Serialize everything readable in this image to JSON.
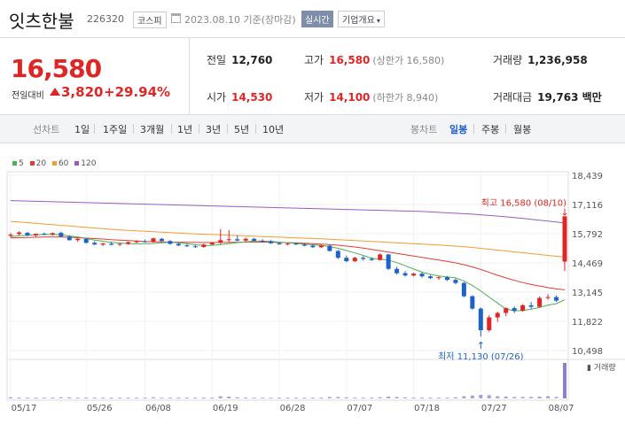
{
  "header": {
    "name": "잇츠한불",
    "code": "226320",
    "market": "코스피",
    "date": "2023.08.10 기준(장마감)",
    "realtime": "실시간",
    "company_info": "기업개요"
  },
  "summary": {
    "price": "16,580",
    "prev_label": "전일대비",
    "change": "3,820",
    "change_pct": "+29.94%",
    "prev_close_label": "전일",
    "prev_close": "12,760",
    "high_label": "고가",
    "high": "16,580",
    "upper_limit": "(상한가 16,580)",
    "volume_label": "거래량",
    "volume": "1,236,958",
    "open_label": "시가",
    "open": "14,530",
    "low_label": "저가",
    "low": "14,100",
    "lower_limit": "(하한가 8,940)",
    "amount_label": "거래대금",
    "amount": "19,763 백만"
  },
  "toolbar": {
    "line_chart_label": "선차트",
    "periods": [
      "1일",
      "1주일",
      "3개월",
      "1년",
      "3년",
      "5년",
      "10년"
    ],
    "candle_label": "봉차트",
    "candle_options": [
      "일봉",
      "주봉",
      "월봉"
    ],
    "active_candle": "일봉"
  },
  "legend": [
    {
      "label": "5",
      "color": "#4caf50"
    },
    {
      "label": "20",
      "color": "#e53935"
    },
    {
      "label": "60",
      "color": "#f39c34"
    },
    {
      "label": "120",
      "color": "#9b59c6"
    }
  ],
  "chart_data": {
    "type": "candlestick",
    "y_ticks": [
      "18,439",
      "17,116",
      "15,792",
      "14,469",
      "13,145",
      "11,822",
      "10,498"
    ],
    "y_range": [
      10498,
      18439
    ],
    "x_ticks": [
      "05/17",
      "05/26",
      "06/08",
      "06/19",
      "06/28",
      "07/07",
      "07/18",
      "07/27",
      "08/07"
    ],
    "high_annotation": "최고 16,580 (08/10)",
    "low_annotation": "최저 11,130 (07/26)",
    "volume_label": "거래량",
    "candles": [
      [
        15700,
        15820,
        15620,
        15750
      ],
      [
        15780,
        15900,
        15700,
        15850
      ],
      [
        15830,
        15880,
        15680,
        15720
      ],
      [
        15720,
        15800,
        15650,
        15790
      ],
      [
        15790,
        15850,
        15720,
        15760
      ],
      [
        15760,
        15840,
        15700,
        15820
      ],
      [
        15830,
        15880,
        15640,
        15660
      ],
      [
        15660,
        15720,
        15480,
        15500
      ],
      [
        15500,
        15620,
        15420,
        15560
      ],
      [
        15560,
        15600,
        15350,
        15380
      ],
      [
        15380,
        15450,
        15280,
        15300
      ],
      [
        15300,
        15380,
        15230,
        15350
      ],
      [
        15340,
        15420,
        15270,
        15290
      ],
      [
        15290,
        15360,
        15240,
        15330
      ],
      [
        15330,
        15440,
        15290,
        15410
      ],
      [
        15410,
        15500,
        15370,
        15440
      ],
      [
        15450,
        15520,
        15390,
        15420
      ],
      [
        15420,
        15620,
        15380,
        15580
      ],
      [
        15560,
        15600,
        15440,
        15460
      ],
      [
        15460,
        15500,
        15300,
        15330
      ],
      [
        15330,
        15400,
        15230,
        15260
      ],
      [
        15260,
        15330,
        15190,
        15220
      ],
      [
        15220,
        15290,
        15150,
        15190
      ],
      [
        15190,
        15340,
        15160,
        15300
      ],
      [
        15300,
        15420,
        15280,
        15390
      ],
      [
        15390,
        16000,
        15320,
        15500
      ],
      [
        15500,
        15950,
        15420,
        15540
      ],
      [
        15540,
        15720,
        15450,
        15480
      ],
      [
        15480,
        15620,
        15400,
        15560
      ],
      [
        15560,
        15600,
        15440,
        15470
      ],
      [
        15470,
        15540,
        15400,
        15450
      ],
      [
        15450,
        15500,
        15330,
        15360
      ],
      [
        15360,
        15420,
        15290,
        15310
      ],
      [
        15310,
        15380,
        15270,
        15340
      ],
      [
        15340,
        15400,
        15280,
        15300
      ],
      [
        15300,
        15360,
        15220,
        15250
      ],
      [
        15250,
        15300,
        15150,
        15180
      ],
      [
        15180,
        15300,
        15140,
        15260
      ],
      [
        15250,
        15280,
        14980,
        15010
      ],
      [
        15010,
        15060,
        14650,
        14700
      ],
      [
        14700,
        14800,
        14500,
        14550
      ],
      [
        14550,
        14750,
        14500,
        14700
      ],
      [
        14700,
        14780,
        14580,
        14650
      ],
      [
        14650,
        14720,
        14560,
        14600
      ],
      [
        14600,
        14900,
        14580,
        14850
      ],
      [
        14850,
        14880,
        14150,
        14200
      ],
      [
        14200,
        14300,
        13950,
        14000
      ],
      [
        14000,
        14100,
        13850,
        13900
      ],
      [
        13900,
        14020,
        13850,
        13980
      ],
      [
        13980,
        14040,
        13800,
        13860
      ],
      [
        13860,
        13920,
        13740,
        13780
      ],
      [
        13780,
        13860,
        13700,
        13820
      ],
      [
        13820,
        13880,
        13650,
        13700
      ],
      [
        13700,
        13760,
        13500,
        13560
      ],
      [
        13560,
        13600,
        12900,
        12960
      ],
      [
        12960,
        13000,
        12350,
        12400
      ],
      [
        12400,
        12450,
        11130,
        11420
      ],
      [
        11420,
        12100,
        11350,
        12000
      ],
      [
        12000,
        12260,
        11800,
        12200
      ],
      [
        12200,
        12450,
        12050,
        12420
      ],
      [
        12420,
        12500,
        12200,
        12300
      ],
      [
        12300,
        12600,
        12250,
        12550
      ],
      [
        12550,
        12700,
        12400,
        12480
      ],
      [
        12480,
        12950,
        12450,
        12880
      ],
      [
        12880,
        13050,
        12800,
        12920
      ],
      [
        12920,
        13000,
        12700,
        12760
      ],
      [
        14530,
        16580,
        14100,
        16580
      ]
    ],
    "ma5": [
      15650,
      15700,
      15720,
      15740,
      15760,
      15760,
      15740,
      15690,
      15640,
      15580,
      15500,
      15450,
      15400,
      15370,
      15340,
      15330,
      15340,
      15350,
      15380,
      15410,
      15380,
      15340,
      15290,
      15260,
      15260,
      15300,
      15340,
      15390,
      15420,
      15460,
      15460,
      15440,
      15410,
      15380,
      15350,
      15320,
      15290,
      15260,
      15210,
      15130,
      15030,
      14920,
      14810,
      14680,
      14640,
      14600,
      14480,
      14340,
      14190,
      14050,
      13950,
      13880,
      13830,
      13790,
      13650,
      13450,
      13200,
      12920,
      12650,
      12380,
      12300,
      12310,
      12370,
      12450,
      12560,
      12620,
      12800
    ],
    "ma20": [
      15600,
      15610,
      15620,
      15630,
      15640,
      15645,
      15640,
      15630,
      15610,
      15590,
      15570,
      15550,
      15520,
      15500,
      15480,
      15460,
      15440,
      15430,
      15420,
      15410,
      15405,
      15400,
      15395,
      15390,
      15390,
      15395,
      15400,
      15405,
      15410,
      15415,
      15410,
      15405,
      15395,
      15385,
      15375,
      15360,
      15340,
      15320,
      15300,
      15270,
      15230,
      15190,
      15140,
      15080,
      15020,
      14960,
      14900,
      14840,
      14780,
      14720,
      14660,
      14600,
      14540,
      14470,
      14390,
      14290,
      14170,
      14040,
      13910,
      13790,
      13680,
      13580,
      13490,
      13420,
      13350,
      13290,
      13250
    ],
    "ma60": [
      16350,
      16320,
      16290,
      16260,
      16230,
      16200,
      16170,
      16140,
      16110,
      16080,
      16050,
      16020,
      15990,
      15960,
      15940,
      15920,
      15900,
      15880,
      15860,
      15840,
      15820,
      15800,
      15785,
      15770,
      15755,
      15740,
      15725,
      15710,
      15695,
      15680,
      15665,
      15650,
      15635,
      15620,
      15605,
      15590,
      15575,
      15560,
      15540,
      15520,
      15500,
      15480,
      15460,
      15440,
      15420,
      15400,
      15380,
      15360,
      15340,
      15320,
      15300,
      15280,
      15255,
      15230,
      15200,
      15170,
      15130,
      15090,
      15050,
      15010,
      14970,
      14930,
      14890,
      14850,
      14810,
      14770,
      14730
    ],
    "ma120": [
      17290,
      17280,
      17270,
      17260,
      17250,
      17240,
      17230,
      17220,
      17210,
      17200,
      17190,
      17180,
      17170,
      17160,
      17150,
      17140,
      17130,
      17120,
      17110,
      17100,
      17090,
      17080,
      17070,
      17060,
      17050,
      17040,
      17030,
      17020,
      17010,
      17000,
      16990,
      16980,
      16970,
      16960,
      16950,
      16940,
      16930,
      16920,
      16910,
      16900,
      16890,
      16880,
      16870,
      16860,
      16850,
      16840,
      16830,
      16820,
      16810,
      16800,
      16780,
      16760,
      16740,
      16720,
      16700,
      16680,
      16650,
      16620,
      16590,
      16560,
      16520,
      16480,
      16440,
      16400,
      16360,
      16320,
      16280
    ],
    "volume": [
      3,
      2,
      2,
      2,
      2,
      2,
      3,
      3,
      2,
      2,
      2,
      2,
      2,
      2,
      2,
      2,
      2,
      3,
      2,
      2,
      2,
      2,
      2,
      2,
      2,
      6,
      5,
      3,
      2,
      2,
      2,
      2,
      2,
      2,
      2,
      2,
      2,
      2,
      4,
      4,
      3,
      2,
      2,
      2,
      3,
      5,
      4,
      3,
      2,
      2,
      2,
      2,
      2,
      3,
      6,
      8,
      10,
      9,
      6,
      5,
      4,
      4,
      4,
      5,
      6,
      4,
      100
    ]
  }
}
